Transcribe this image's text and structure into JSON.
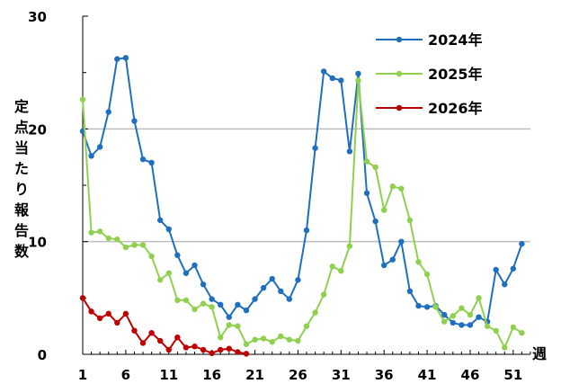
{
  "chart_data": {
    "type": "line",
    "title": "",
    "ylabel": "定点当たり報告数",
    "xlabel": "週",
    "ylim": [
      0,
      30
    ],
    "yticks": [
      0,
      10,
      20,
      30
    ],
    "xlim": [
      1,
      53
    ],
    "xticks": [
      1,
      6,
      11,
      16,
      21,
      26,
      31,
      36,
      41,
      46,
      51
    ],
    "grid": "horizontal at 10 and 20",
    "legend_position": "top-right",
    "series": [
      {
        "name": "2024年",
        "color": "#1f6fbf",
        "x": [
          1,
          2,
          3,
          4,
          5,
          6,
          7,
          8,
          9,
          10,
          11,
          12,
          13,
          14,
          15,
          16,
          17,
          18,
          19,
          20,
          21,
          22,
          23,
          24,
          25,
          26,
          27,
          28,
          29,
          30,
          31,
          32,
          33,
          34,
          35,
          36,
          37,
          38,
          39,
          40,
          41,
          42,
          43,
          44,
          45,
          46,
          47,
          48,
          49,
          50,
          51,
          52
        ],
        "values": [
          19.8,
          17.6,
          18.4,
          21.5,
          26.2,
          26.3,
          20.7,
          17.3,
          17.0,
          11.9,
          11.1,
          8.8,
          7.2,
          7.9,
          6.2,
          4.9,
          4.4,
          3.3,
          4.4,
          3.9,
          4.9,
          5.9,
          6.7,
          5.6,
          4.9,
          6.6,
          11.0,
          18.3,
          25.1,
          24.5,
          24.3,
          18.0,
          24.9,
          14.3,
          11.8,
          7.9,
          8.4,
          10.0,
          5.6,
          4.3,
          4.2,
          4.3,
          3.5,
          2.8,
          2.6,
          2.6,
          3.3,
          2.9,
          7.5,
          6.2,
          7.6,
          9.8
        ]
      },
      {
        "name": "2025年",
        "color": "#8fd14f",
        "x": [
          1,
          2,
          3,
          4,
          5,
          6,
          7,
          8,
          9,
          10,
          11,
          12,
          13,
          14,
          15,
          16,
          17,
          18,
          19,
          20,
          21,
          22,
          23,
          24,
          25,
          26,
          27,
          28,
          29,
          30,
          31,
          32,
          33,
          34,
          35,
          36,
          37,
          38,
          39,
          40,
          41,
          42,
          43,
          44,
          45,
          46,
          47,
          48,
          49,
          50,
          51,
          52
        ],
        "values": [
          22.6,
          10.8,
          10.9,
          10.3,
          10.2,
          9.5,
          9.7,
          9.7,
          8.7,
          6.6,
          7.2,
          4.8,
          4.8,
          4.0,
          4.5,
          4.2,
          1.5,
          2.6,
          2.5,
          0.9,
          1.3,
          1.4,
          1.1,
          1.6,
          1.3,
          1.2,
          2.5,
          3.7,
          5.3,
          7.8,
          7.4,
          9.6,
          24.3,
          17.1,
          16.6,
          12.8,
          14.9,
          14.7,
          11.9,
          8.2,
          7.1,
          4.2,
          2.9,
          3.4,
          4.1,
          3.5,
          5.0,
          2.5,
          2.1,
          0.6,
          2.4,
          1.9
        ]
      },
      {
        "name": "2026年",
        "color": "#c00000",
        "x": [
          1,
          2,
          3,
          4,
          5,
          6,
          7,
          8,
          9,
          10,
          11,
          12,
          13,
          14,
          15,
          16,
          17,
          18,
          19,
          20
        ],
        "values": [
          5.0,
          3.8,
          3.2,
          3.6,
          2.8,
          3.6,
          2.1,
          1.0,
          1.9,
          1.2,
          0.4,
          1.5,
          0.6,
          0.7,
          0.4,
          0.1,
          0.4,
          0.5,
          0.2,
          0.05
        ]
      }
    ]
  }
}
